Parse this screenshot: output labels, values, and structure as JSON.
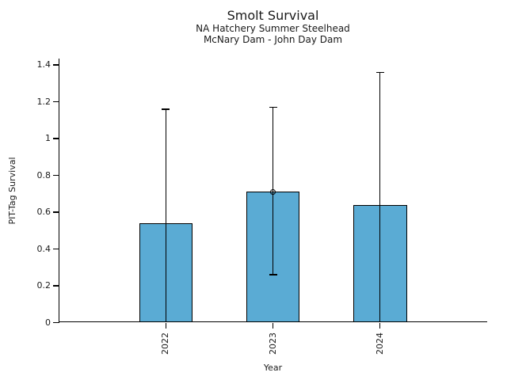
{
  "chart_data": {
    "type": "bar",
    "title": "Smolt Survival",
    "subtitle": [
      "NA Hatchery Summer Steelhead",
      "McNary Dam - John Day Dam"
    ],
    "xlabel": "Year",
    "ylabel": "PIT-Tag Survival",
    "categories": [
      "2022",
      "2023",
      "2024"
    ],
    "series": [
      {
        "name": "PIT-Tag Survival",
        "values": [
          0.54,
          0.71,
          0.64
        ],
        "ci_upper": [
          1.16,
          1.17,
          1.36
        ],
        "ci_lower": [
          0.0,
          0.26,
          0.0
        ],
        "ci_lower_cap": [
          false,
          true,
          false
        ],
        "point_marker": [
          false,
          true,
          false
        ]
      }
    ],
    "ylim": [
      0,
      1.435
    ],
    "ytick_labels": [
      "0",
      "0.2",
      "0.4",
      "0.6",
      "0.8",
      "1",
      "1.2",
      "1.4"
    ],
    "grid": false,
    "legend": false,
    "marker_style": "open-circle",
    "bar_color": "#5AABD4",
    "bar_edge_color": "#000000",
    "error_bar_color": "#000000",
    "text_color": "#1a1a1a"
  }
}
